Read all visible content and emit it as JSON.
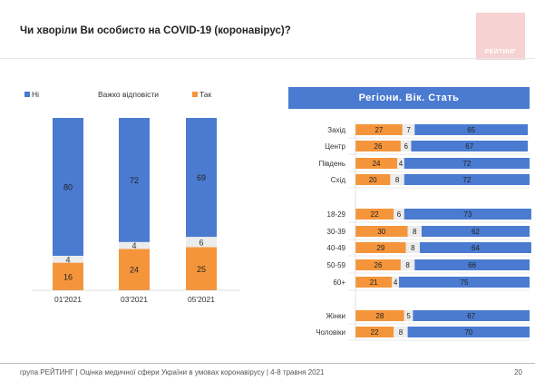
{
  "header": {
    "title": "Чи хворіли Ви особисто на COVID-19 (коронавірус)?",
    "logo_text": "РЕЙТИНГ"
  },
  "footer": {
    "text": "група РЕЙТИНГ  |  Оцінка медичної сфери України в умовах коронавірусу  | 4-8 травня 2021",
    "page_number": "20"
  },
  "colors": {
    "no": "#4a7bd0",
    "hard": "#ececec",
    "yes": "#f5953b"
  },
  "chart_data": [
    {
      "type": "bar",
      "stacked": true,
      "title": "",
      "legend_position": "top",
      "categories": [
        "01'2021",
        "03'2021",
        "05'2021"
      ],
      "series": [
        {
          "name": "Так",
          "values": [
            16,
            24,
            25
          ],
          "color": "#f5953b"
        },
        {
          "name": "Важко відповісти",
          "values": [
            4,
            4,
            6
          ],
          "color": "#ececec"
        },
        {
          "name": "Ні",
          "values": [
            80,
            72,
            69
          ],
          "color": "#4a7bd0"
        }
      ],
      "ylim": [
        0,
        100
      ]
    },
    {
      "type": "bar",
      "orientation": "horizontal",
      "stacked": true,
      "title": "Регіони. Вік. Стать",
      "categories": [
        "Захід",
        "Центр",
        "Південь",
        "Схід",
        "18-29",
        "30-39",
        "40-49",
        "50-59",
        "60+",
        "Жінки",
        "Чоловіки"
      ],
      "series": [
        {
          "name": "Так",
          "values": [
            27,
            26,
            24,
            20,
            22,
            30,
            29,
            26,
            21,
            28,
            22
          ],
          "color": "#f5953b"
        },
        {
          "name": "Важко відповісти",
          "values": [
            7,
            6,
            4,
            8,
            6,
            8,
            8,
            8,
            4,
            5,
            8
          ],
          "color": "#ececec"
        },
        {
          "name": "Ні",
          "values": [
            65,
            67,
            72,
            72,
            73,
            62,
            64,
            66,
            75,
            67,
            70
          ],
          "color": "#4a7bd0"
        }
      ],
      "xlim": [
        0,
        100
      ]
    }
  ]
}
